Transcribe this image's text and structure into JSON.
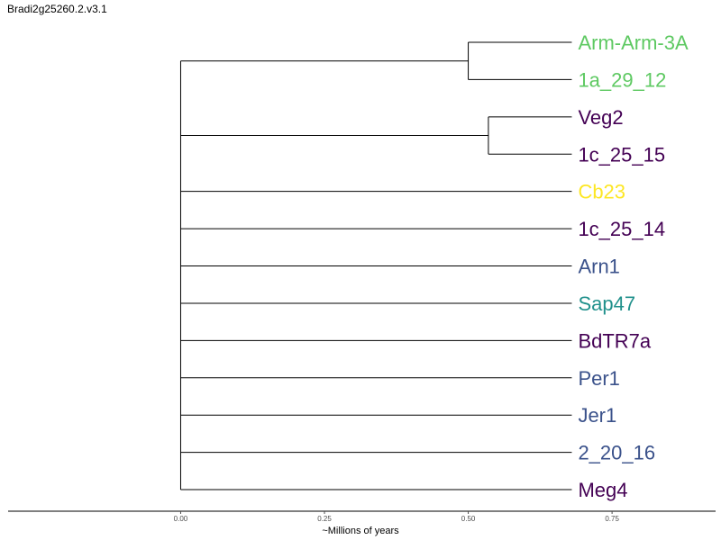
{
  "chart_data": {
    "type": "dendrogram",
    "title": "Bradi2g25260.2.v3.1",
    "xlabel": "~Millions of years",
    "xlim": [
      -0.3,
      0.93
    ],
    "x_ticks": [
      0.0,
      0.25,
      0.5,
      0.75
    ],
    "x_tick_labels": [
      "0.00",
      "0.25",
      "0.50",
      "0.75"
    ],
    "tip_x": 0.68,
    "leaves": [
      {
        "name": "Arm-Arm-3A",
        "color": "#5ec962"
      },
      {
        "name": "1a_29_12",
        "color": "#5ec962"
      },
      {
        "name": "Veg2",
        "color": "#440154"
      },
      {
        "name": "1c_25_15",
        "color": "#440154"
      },
      {
        "name": "Cb23",
        "color": "#fde725"
      },
      {
        "name": "1c_25_14",
        "color": "#440154"
      },
      {
        "name": "Arn1",
        "color": "#3b528b"
      },
      {
        "name": "Sap47",
        "color": "#21918c"
      },
      {
        "name": "BdTR7a",
        "color": "#440154"
      },
      {
        "name": "Per1",
        "color": "#3b528b"
      },
      {
        "name": "Jer1",
        "color": "#3b528b"
      },
      {
        "name": "2_20_16",
        "color": "#3b528b"
      },
      {
        "name": "Meg4",
        "color": "#440154"
      }
    ],
    "clades": [
      {
        "node_x": 0.5,
        "children": [
          0,
          1
        ]
      },
      {
        "node_x": 0.535,
        "children": [
          2,
          3
        ]
      }
    ],
    "root_x": 0.0
  }
}
